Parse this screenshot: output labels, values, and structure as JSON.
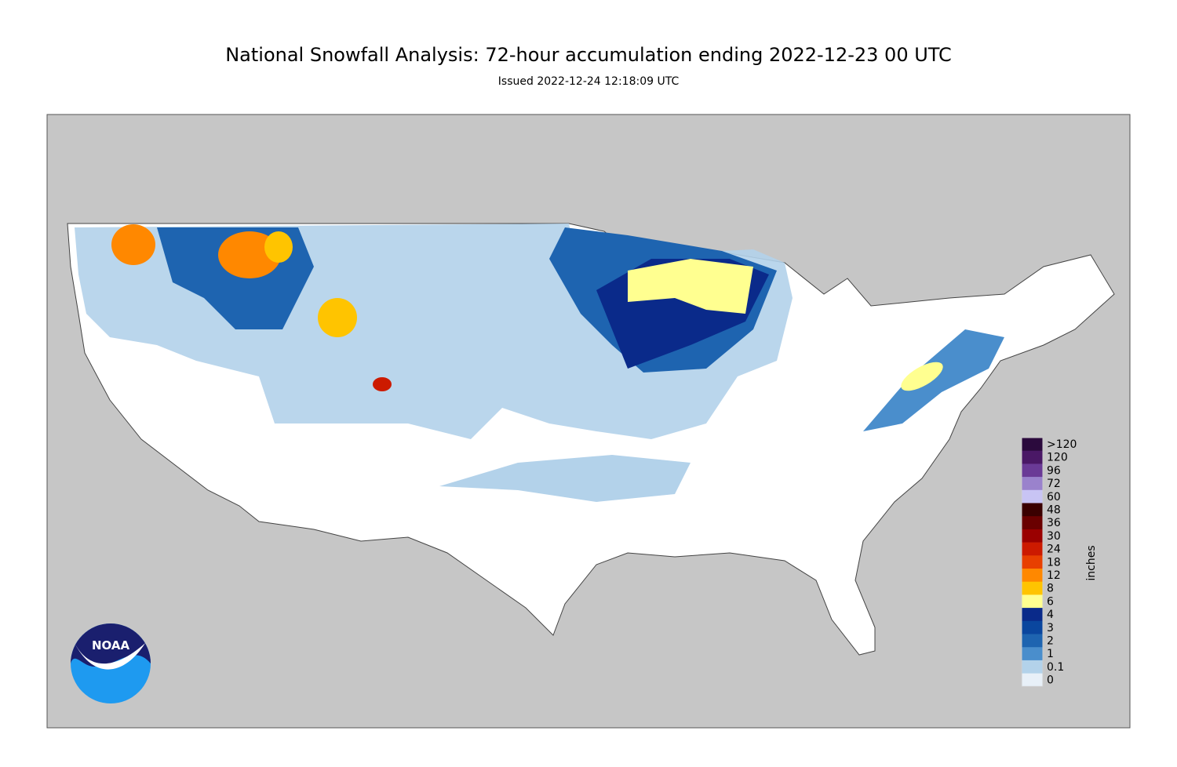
{
  "header": {
    "title": "National Snowfall Analysis: 72-hour accumulation ending 2022-12-23 00 UTC",
    "subtitle": "Issued 2022-12-24 12:18:09 UTC"
  },
  "logo": {
    "text": "NOAA"
  },
  "colorbar": {
    "unit": "inches",
    "items": [
      {
        "label": ">120",
        "color": "#2b0a3d"
      },
      {
        "label": "120",
        "color": "#4a1866"
      },
      {
        "label": "96",
        "color": "#6a3a96"
      },
      {
        "label": "72",
        "color": "#9a82cc"
      },
      {
        "label": "60",
        "color": "#c8c4f4"
      },
      {
        "label": "48",
        "color": "#3a0000"
      },
      {
        "label": "36",
        "color": "#6a0000"
      },
      {
        "label": "30",
        "color": "#9a0000"
      },
      {
        "label": "24",
        "color": "#cc1a00"
      },
      {
        "label": "18",
        "color": "#e84000"
      },
      {
        "label": "12",
        "color": "#ff8800"
      },
      {
        "label": "8",
        "color": "#ffc400"
      },
      {
        "label": "6",
        "color": "#ffff90"
      },
      {
        "label": "4",
        "color": "#0a2a8a"
      },
      {
        "label": "3",
        "color": "#0a469e"
      },
      {
        "label": "2",
        "color": "#1e64b0"
      },
      {
        "label": "1",
        "color": "#4a8ecc"
      },
      {
        "label": "0.1",
        "color": "#b3d2ea"
      },
      {
        "label": "0",
        "color": "#e8f0f8"
      }
    ]
  }
}
